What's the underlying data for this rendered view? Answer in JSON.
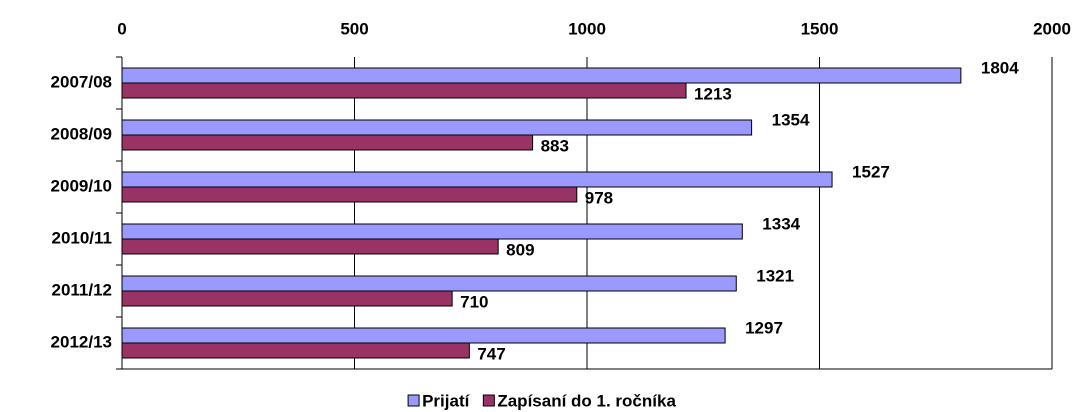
{
  "chart_data": {
    "type": "hbar",
    "categories": [
      "2007/08",
      "2008/09",
      "2009/10",
      "2010/11",
      "2011/12",
      "2012/13"
    ],
    "series": [
      {
        "name": "Prijatí",
        "color": "#9999ff",
        "values": [
          1804,
          1354,
          1527,
          1334,
          1321,
          1297
        ]
      },
      {
        "name": "Zapísaní do 1. ročníka",
        "color": "#993366",
        "values": [
          1213,
          883,
          978,
          809,
          710,
          747
        ]
      }
    ],
    "xlim": [
      0,
      2000
    ],
    "xticks": [
      0,
      500,
      1000,
      1500,
      2000
    ],
    "grid": true,
    "legend": "bottom"
  }
}
